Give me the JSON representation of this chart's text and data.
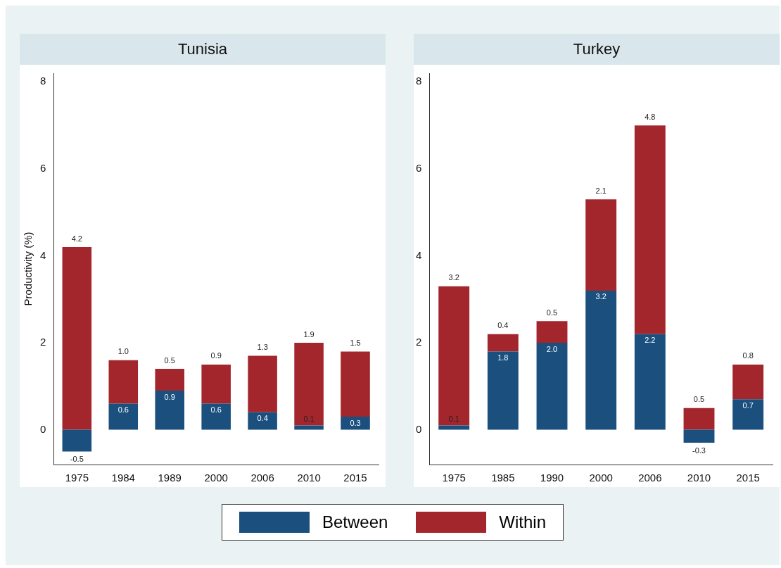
{
  "chart_data": [
    {
      "type": "bar",
      "title": "Tunisia",
      "ylabel": "Productivity (%)",
      "categories": [
        "1975",
        "1984",
        "1989",
        "2000",
        "2006",
        "2010",
        "2015"
      ],
      "stacked": true,
      "ylim": [
        -0.8,
        8.2
      ],
      "yticks": [
        0,
        2,
        4,
        6,
        8
      ],
      "legend": "bottom",
      "series": [
        {
          "name": "Between",
          "color": "#1a4f7e",
          "values": [
            -0.5,
            0.6,
            0.9,
            0.6,
            0.4,
            0.1,
            0.3
          ],
          "value_labels": [
            "-0.5",
            "0.6",
            "0.9",
            "0.6",
            "0.4",
            "0.1",
            "0.3"
          ]
        },
        {
          "name": "Within",
          "color": "#a3262c",
          "values": [
            4.2,
            1.0,
            0.5,
            0.9,
            1.3,
            1.9,
            1.5
          ],
          "value_labels": [
            "4.2",
            "1.0",
            "0.5",
            "0.9",
            "1.3",
            "1.9",
            "1.5"
          ]
        }
      ]
    },
    {
      "type": "bar",
      "title": "Turkey",
      "categories": [
        "1975",
        "1985",
        "1990",
        "2000",
        "2006",
        "2010",
        "2015"
      ],
      "stacked": true,
      "ylim": [
        -0.8,
        8.2
      ],
      "yticks": [
        0,
        2,
        4,
        6,
        8
      ],
      "series": [
        {
          "color": "#1a4f7e",
          "values": [
            0.1,
            1.8,
            2.0,
            3.2,
            2.2,
            -0.3,
            0.7
          ],
          "value_labels": [
            "0.1",
            "1.8",
            "2.0",
            "3.2",
            "2.2",
            "-0.3",
            "0.7"
          ]
        },
        {
          "color": "#a3262c",
          "values": [
            3.2,
            0.4,
            0.5,
            2.1,
            4.8,
            0.5,
            0.8
          ],
          "value_labels": [
            "3.2",
            "0.4",
            "0.5",
            "2.1",
            "4.8",
            "0.5",
            "0.8"
          ]
        }
      ]
    }
  ]
}
